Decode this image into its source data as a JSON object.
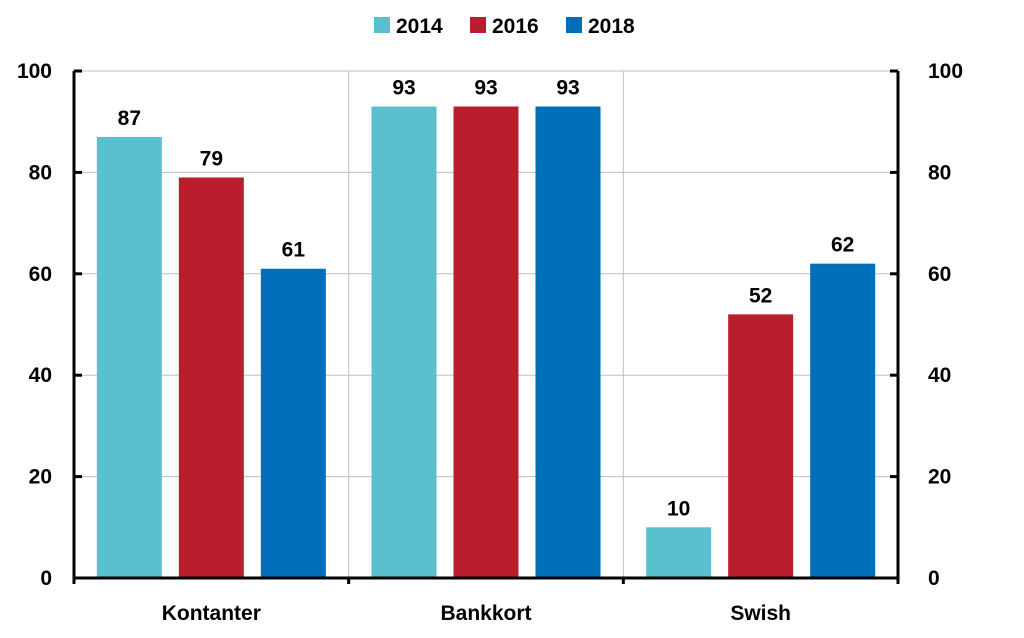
{
  "chart_data": {
    "type": "bar",
    "categories": [
      "Kontanter",
      "Bankkort",
      "Swish"
    ],
    "series": [
      {
        "name": "2014",
        "color": "#5BC0CE",
        "values": [
          87,
          93,
          10
        ]
      },
      {
        "name": "2016",
        "color": "#BA1E2C",
        "values": [
          79,
          93,
          52
        ]
      },
      {
        "name": "2018",
        "color": "#006EB8",
        "values": [
          61,
          93,
          62
        ]
      }
    ],
    "ylim": [
      0,
      100
    ],
    "yticks": [
      0,
      20,
      40,
      60,
      80,
      100
    ],
    "ytick_labels": [
      "0",
      "20",
      "40",
      "60",
      "80",
      "100"
    ],
    "y2ticks": [
      0,
      20,
      40,
      60,
      80,
      100
    ],
    "y2tick_labels": [
      "0",
      "20",
      "40",
      "60",
      "80",
      "100"
    ],
    "grid": true,
    "legend_position": "top-center",
    "axis_color": "#000000",
    "grid_color": "#BFBFBF"
  }
}
